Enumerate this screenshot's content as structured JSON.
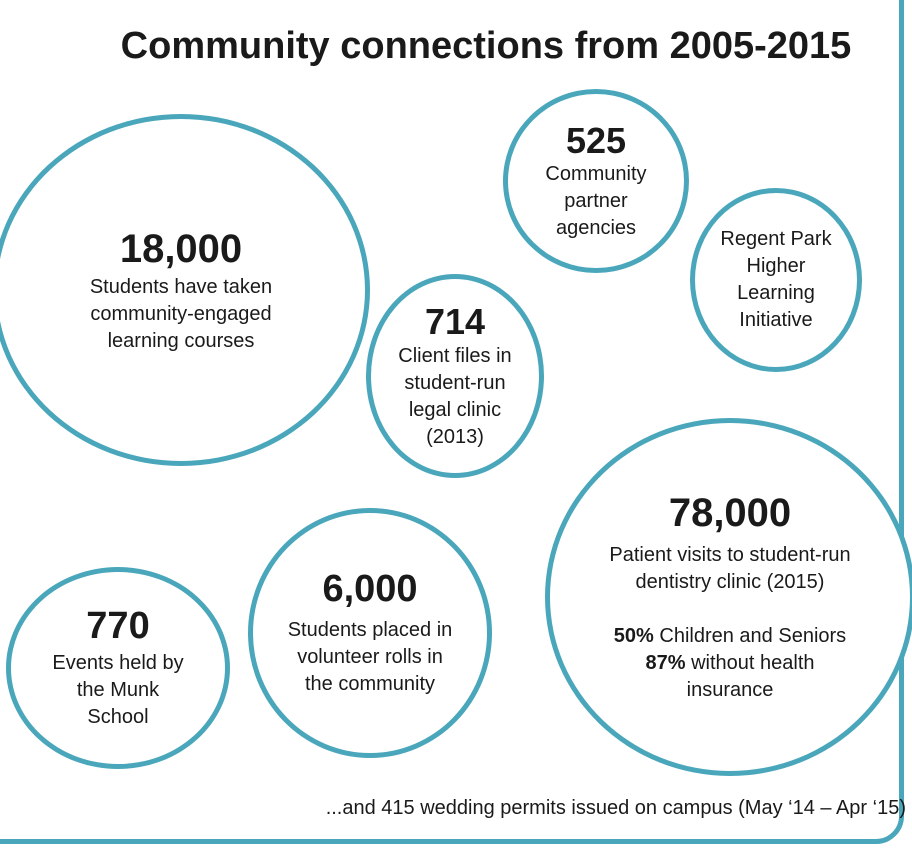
{
  "title": "Community connections from 2005-2015",
  "bubbles": {
    "students_courses": {
      "number": "18,000",
      "lines": [
        "Students have taken",
        "community-engaged",
        "learning courses"
      ]
    },
    "partner_agencies": {
      "number": "525",
      "lines": [
        "Community",
        "partner",
        "agencies"
      ]
    },
    "regent_park": {
      "lines": [
        "Regent Park",
        "Higher",
        "Learning",
        "Initiative"
      ]
    },
    "legal_clinic": {
      "number": "714",
      "lines": [
        "Client files in",
        "student-run",
        "legal clinic",
        "(2013)"
      ]
    },
    "dentistry": {
      "number": "78,000",
      "lines": [
        "Patient visits to student-run",
        "dentistry clinic (2015)"
      ],
      "stat1_value": "50%",
      "stat1_label": "Children and Seniors",
      "stat2_value": "87%",
      "stat2_label_line1": "without health",
      "stat2_label_line2": "insurance"
    },
    "volunteers": {
      "number": "6,000",
      "lines": [
        "Students placed in",
        "volunteer rolls in",
        "the community"
      ]
    },
    "events": {
      "number": "770",
      "lines": [
        "Events held by",
        "the Munk",
        "School"
      ]
    }
  },
  "footnote": "...and 415 wedding permits issued on campus (May ‘14 – Apr ‘15)",
  "colors": {
    "accent": "#4aa7bb",
    "text": "#1a1a1a",
    "background": "#ffffff"
  }
}
